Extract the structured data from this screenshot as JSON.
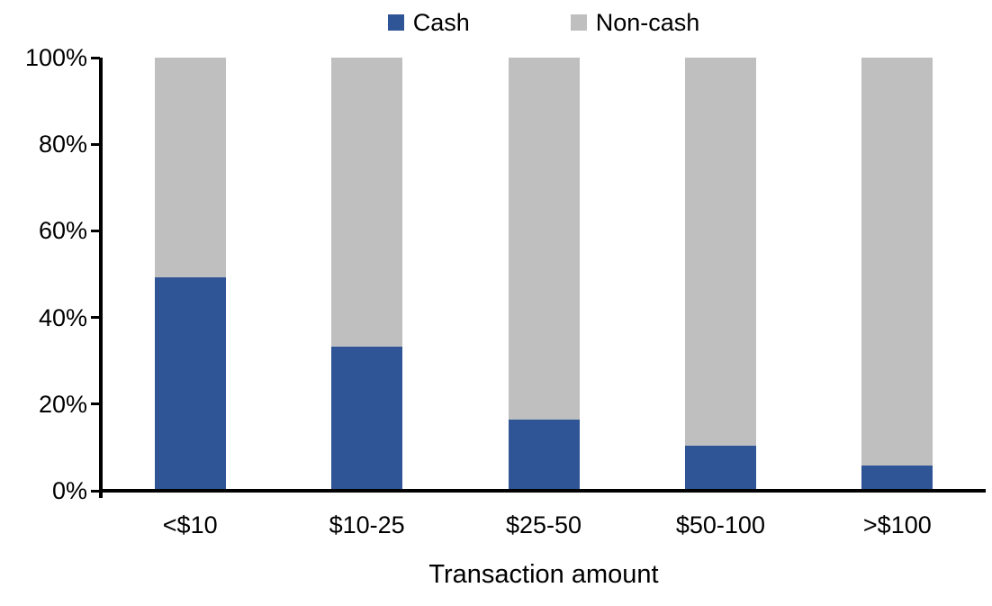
{
  "chart_data": {
    "type": "bar",
    "stacked": true,
    "orientation": "vertical",
    "title": "",
    "xlabel": "Transaction amount",
    "ylabel": "",
    "categories": [
      "<$10",
      "$10-25",
      "$25-50",
      "$50-100",
      ">$100"
    ],
    "series": [
      {
        "name": "Cash",
        "color": "#2F5597",
        "values": [
          49,
          33,
          16,
          10,
          5.5
        ]
      },
      {
        "name": "Non-cash",
        "color": "#BFBFBF",
        "values": [
          51,
          67,
          84,
          90,
          94.5
        ]
      }
    ],
    "ylim": [
      0,
      100
    ],
    "y_ticks": [
      {
        "value": 0,
        "label": "0%"
      },
      {
        "value": 20,
        "label": "20%"
      },
      {
        "value": 40,
        "label": "40%"
      },
      {
        "value": 60,
        "label": "60%"
      },
      {
        "value": 80,
        "label": "80%"
      },
      {
        "value": 100,
        "label": "100%"
      }
    ],
    "grid": false,
    "legend_position": "top-center",
    "axis_color": "#000000",
    "background": "#FFFFFF",
    "text_color": "#000000"
  }
}
